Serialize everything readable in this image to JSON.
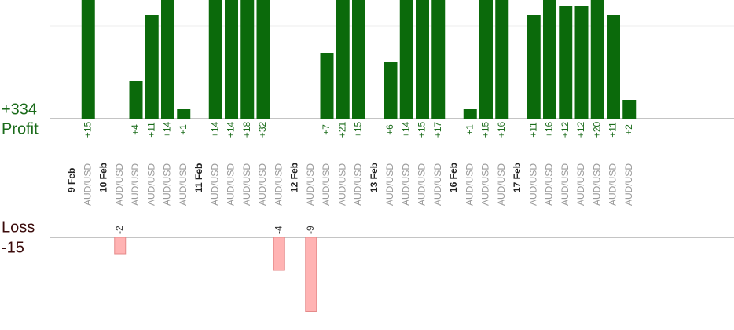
{
  "chart_data": {
    "type": "bar",
    "profit_label": "Profit",
    "profit_total": 334,
    "profit_total_label": "+334",
    "loss_label": "Loss",
    "loss_total": -15,
    "profit_color": "#0b6a0b",
    "loss_color": "#ffb3b3",
    "groups": [
      {
        "date": "9 Feb",
        "trades": [
          {
            "symbol": "AUD/USD",
            "value": 15,
            "value_label": "+15"
          }
        ]
      },
      {
        "date": "10 Feb",
        "trades": [
          {
            "symbol": "AUD/USD",
            "value": -2
          },
          {
            "symbol": "AUD/USD",
            "value": 4,
            "value_label": "+4"
          },
          {
            "symbol": "AUD/USD",
            "value": 11,
            "value_label": "+11"
          },
          {
            "symbol": "AUD/USD",
            "value": 14,
            "value_label": "+14"
          },
          {
            "symbol": "AUD/USD",
            "value": 1,
            "value_label": "+1"
          }
        ]
      },
      {
        "date": "11 Feb",
        "trades": [
          {
            "symbol": "AUD/USD",
            "value": 14,
            "value_label": "+14"
          },
          {
            "symbol": "AUD/USD",
            "value": 14,
            "value_label": "+14"
          },
          {
            "symbol": "AUD/USD",
            "value": 18,
            "value_label": "+18"
          },
          {
            "symbol": "AUD/USD",
            "value": 32,
            "value_label": "+32"
          },
          {
            "symbol": "AUD/USD",
            "value": -4
          }
        ]
      },
      {
        "date": "12 Feb",
        "trades": [
          {
            "symbol": "AUD/USD",
            "value": -9
          },
          {
            "symbol": "AUD/USD",
            "value": 7,
            "value_label": "+7"
          },
          {
            "symbol": "AUD/USD",
            "value": 21,
            "value_label": "+21"
          },
          {
            "symbol": "AUD/USD",
            "value": 15,
            "value_label": "+15"
          }
        ]
      },
      {
        "date": "13 Feb",
        "trades": [
          {
            "symbol": "AUD/USD",
            "value": 6,
            "value_label": "+6"
          },
          {
            "symbol": "AUD/USD",
            "value": 14,
            "value_label": "+14"
          },
          {
            "symbol": "AUD/USD",
            "value": 15,
            "value_label": "+15"
          },
          {
            "symbol": "AUD/USD",
            "value": 17,
            "value_label": "+17"
          }
        ]
      },
      {
        "date": "16 Feb",
        "trades": [
          {
            "symbol": "AUD/USD",
            "value": 1,
            "value_label": "+1"
          },
          {
            "symbol": "AUD/USD",
            "value": 15,
            "value_label": "+15"
          },
          {
            "symbol": "AUD/USD",
            "value": 16,
            "value_label": "+16"
          }
        ]
      },
      {
        "date": "17 Feb",
        "trades": [
          {
            "symbol": "AUD/USD",
            "value": 11,
            "value_label": "+11"
          },
          {
            "symbol": "AUD/USD",
            "value": 16,
            "value_label": "+16"
          },
          {
            "symbol": "AUD/USD",
            "value": 12,
            "value_label": "+12"
          },
          {
            "symbol": "AUD/USD",
            "value": 12,
            "value_label": "+12"
          },
          {
            "symbol": "AUD/USD",
            "value": 20,
            "value_label": "+20"
          },
          {
            "symbol": "AUD/USD",
            "value": 11,
            "value_label": "+11"
          },
          {
            "symbol": "AUD/USD",
            "value": 2,
            "value_label": "+2"
          }
        ]
      }
    ]
  }
}
